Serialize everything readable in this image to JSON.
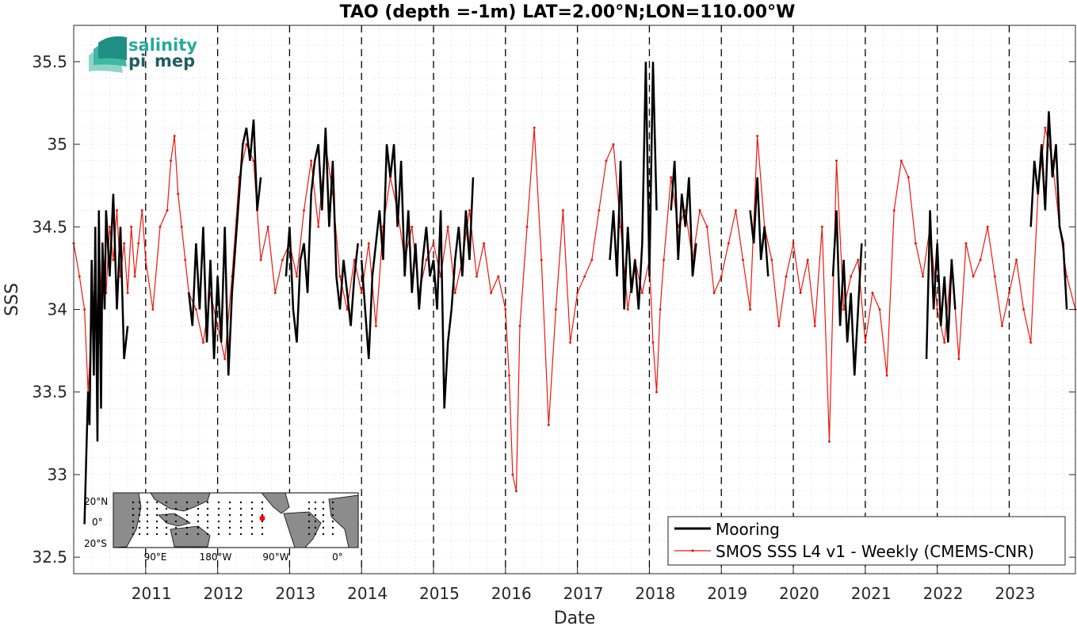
{
  "chart_data": {
    "type": "line",
    "title": "TAO (depth =-1m) LAT=2.00°N;LON=110.00°W",
    "xlabel": "Date",
    "ylabel": "SSS",
    "xlim": [
      2010.0,
      2023.92
    ],
    "ylim": [
      32.4,
      35.72
    ],
    "x_ticks": [
      "2011",
      "2012",
      "2013",
      "2014",
      "2015",
      "2016",
      "2017",
      "2018",
      "2019",
      "2020",
      "2021",
      "2022",
      "2023"
    ],
    "y_ticks": [
      "32.5",
      "33",
      "33.5",
      "34",
      "34.5",
      "35",
      "35.5"
    ],
    "y_tick_values": [
      32.5,
      33,
      33.5,
      34,
      34.5,
      35,
      35.5
    ],
    "year_lines": [
      2011,
      2012,
      2013,
      2014,
      2015,
      2016,
      2017,
      2018,
      2019,
      2020,
      2021,
      2022,
      2023
    ],
    "grid": "minor-dotted",
    "legend": "bottom-right",
    "series": [
      {
        "name": "Mooring",
        "color": "#000000",
        "segments": [
          {
            "x": [
              2010.15,
              2010.18,
              2010.2,
              2010.22,
              2010.25,
              2010.28,
              2010.3,
              2010.33,
              2010.35,
              2010.38,
              2010.4,
              2010.43,
              2010.45,
              2010.5,
              2010.55,
              2010.6,
              2010.65,
              2010.7,
              2010.75
            ],
            "y": [
              32.7,
              33.2,
              33.5,
              33.3,
              34.3,
              33.6,
              34.5,
              33.2,
              34.6,
              33.4,
              34.4,
              34.0,
              34.6,
              34.2,
              34.7,
              34.0,
              34.5,
              33.7,
              33.9
            ]
          },
          {
            "x": [
              2011.6,
              2011.65,
              2011.7,
              2011.75,
              2011.8,
              2011.85,
              2011.9,
              2011.95,
              2012.0,
              2012.05,
              2012.1,
              2012.15,
              2012.2,
              2012.3,
              2012.35,
              2012.4,
              2012.45,
              2012.5,
              2012.55,
              2012.6
            ],
            "y": [
              34.1,
              33.9,
              34.4,
              34.0,
              34.5,
              33.8,
              34.3,
              33.7,
              34.2,
              33.8,
              34.5,
              33.6,
              34.1,
              34.7,
              35.0,
              35.1,
              34.9,
              35.15,
              34.6,
              34.8
            ]
          },
          {
            "x": [
              2012.95,
              2013.0,
              2013.05,
              2013.1,
              2013.15,
              2013.2,
              2013.25,
              2013.3,
              2013.35,
              2013.4,
              2013.45,
              2013.5,
              2013.55,
              2013.6,
              2013.65,
              2013.7,
              2013.75,
              2013.8,
              2013.85,
              2013.9,
              2013.95
            ],
            "y": [
              34.2,
              34.5,
              34.0,
              33.8,
              34.3,
              34.4,
              34.1,
              34.7,
              34.9,
              35.0,
              34.6,
              35.1,
              34.5,
              34.9,
              34.2,
              34.0,
              34.3,
              34.1,
              33.9,
              34.2,
              34.4
            ]
          },
          {
            "x": [
              2014.0,
              2014.05,
              2014.1,
              2014.15,
              2014.2,
              2014.25,
              2014.3,
              2014.35,
              2014.4,
              2014.45,
              2014.5,
              2014.55,
              2014.6,
              2014.65,
              2014.7,
              2014.75,
              2014.8,
              2014.85,
              2014.9,
              2014.95,
              2015.0,
              2015.05,
              2015.1,
              2015.15,
              2015.2,
              2015.25,
              2015.3,
              2015.35,
              2015.4,
              2015.45,
              2015.5,
              2015.55
            ],
            "y": [
              34.3,
              34.0,
              33.7,
              34.2,
              34.4,
              34.6,
              34.3,
              35.0,
              34.8,
              35.0,
              34.5,
              34.9,
              34.2,
              34.6,
              34.1,
              34.4,
              34.0,
              34.3,
              34.5,
              34.2,
              34.3,
              34.0,
              34.6,
              33.4,
              33.8,
              34.0,
              34.3,
              34.5,
              34.2,
              34.6,
              34.3,
              34.8
            ]
          },
          {
            "x": [
              2017.45,
              2017.5,
              2017.55,
              2017.6,
              2017.65,
              2017.7,
              2017.75,
              2017.8,
              2017.85,
              2017.9,
              2017.95,
              2018.0,
              2018.05,
              2018.1
            ],
            "y": [
              34.3,
              34.6,
              34.2,
              34.9,
              34.0,
              34.5,
              34.1,
              34.3,
              34.0,
              34.4,
              35.5,
              34.2,
              35.5,
              34.6
            ]
          },
          {
            "x": [
              2018.3,
              2018.35,
              2018.4,
              2018.45,
              2018.5,
              2018.55,
              2018.6,
              2018.65
            ],
            "y": [
              34.6,
              34.9,
              34.3,
              34.7,
              34.5,
              34.8,
              34.2,
              34.4
            ]
          },
          {
            "x": [
              2019.4,
              2019.45,
              2019.5,
              2019.55,
              2019.6,
              2019.65
            ],
            "y": [
              34.6,
              34.4,
              34.8,
              34.3,
              34.5,
              34.2
            ]
          },
          {
            "x": [
              2020.55,
              2020.6,
              2020.65,
              2020.7,
              2020.75,
              2020.8,
              2020.85,
              2020.9,
              2020.95
            ],
            "y": [
              34.2,
              34.6,
              33.9,
              34.3,
              33.8,
              34.1,
              33.6,
              34.0,
              34.4
            ]
          },
          {
            "x": [
              2021.85,
              2021.9,
              2021.95,
              2022.0,
              2022.05,
              2022.1,
              2022.15,
              2022.2,
              2022.25
            ],
            "y": [
              33.7,
              34.6,
              34.0,
              34.4,
              33.9,
              34.2,
              33.8,
              34.3,
              34.0
            ]
          },
          {
            "x": [
              2023.3,
              2023.35,
              2023.4,
              2023.45,
              2023.5,
              2023.55,
              2023.6,
              2023.65,
              2023.7,
              2023.75,
              2023.8
            ],
            "y": [
              34.5,
              34.9,
              34.7,
              35.0,
              34.6,
              35.2,
              34.8,
              35.0,
              34.5,
              34.4,
              34.0
            ]
          }
        ]
      },
      {
        "name": "SMOS SSS L4 v1 - Weekly (CMEMS-CNR)",
        "color": "#e8190f",
        "x": [
          2010.0,
          2010.08,
          2010.15,
          2010.2,
          2010.25,
          2010.3,
          2010.35,
          2010.4,
          2010.45,
          2010.5,
          2010.55,
          2010.6,
          2010.65,
          2010.7,
          2010.75,
          2010.8,
          2010.85,
          2010.9,
          2010.95,
          2011.0,
          2011.1,
          2011.2,
          2011.3,
          2011.35,
          2011.4,
          2011.45,
          2011.5,
          2011.55,
          2011.6,
          2011.7,
          2011.8,
          2011.9,
          2012.0,
          2012.1,
          2012.2,
          2012.3,
          2012.4,
          2012.5,
          2012.55,
          2012.6,
          2012.7,
          2012.8,
          2012.9,
          2013.0,
          2013.1,
          2013.2,
          2013.3,
          2013.4,
          2013.5,
          2013.6,
          2013.7,
          2013.8,
          2013.9,
          2014.0,
          2014.1,
          2014.2,
          2014.3,
          2014.4,
          2014.5,
          2014.6,
          2014.7,
          2014.8,
          2014.9,
          2015.0,
          2015.1,
          2015.2,
          2015.3,
          2015.4,
          2015.5,
          2015.6,
          2015.7,
          2015.8,
          2015.9,
          2016.0,
          2016.05,
          2016.1,
          2016.15,
          2016.2,
          2016.3,
          2016.4,
          2016.5,
          2016.6,
          2016.7,
          2016.8,
          2016.9,
          2017.0,
          2017.1,
          2017.2,
          2017.3,
          2017.4,
          2017.5,
          2017.6,
          2017.7,
          2017.8,
          2017.9,
          2018.0,
          2018.05,
          2018.1,
          2018.15,
          2018.2,
          2018.3,
          2018.4,
          2018.5,
          2018.6,
          2018.7,
          2018.8,
          2018.9,
          2019.0,
          2019.1,
          2019.2,
          2019.3,
          2019.4,
          2019.5,
          2019.6,
          2019.7,
          2019.8,
          2019.9,
          2020.0,
          2020.1,
          2020.2,
          2020.3,
          2020.4,
          2020.5,
          2020.6,
          2020.7,
          2020.8,
          2020.9,
          2021.0,
          2021.1,
          2021.2,
          2021.3,
          2021.4,
          2021.5,
          2021.6,
          2021.7,
          2021.8,
          2021.9,
          2022.0,
          2022.1,
          2022.2,
          2022.3,
          2022.4,
          2022.5,
          2022.6,
          2022.7,
          2022.8,
          2022.9,
          2023.0,
          2023.1,
          2023.2,
          2023.3,
          2023.4,
          2023.5,
          2023.6,
          2023.7,
          2023.8,
          2023.92
        ],
        "y": [
          34.4,
          34.2,
          34.0,
          33.5,
          33.9,
          34.2,
          33.8,
          34.4,
          34.1,
          34.5,
          34.3,
          34.6,
          34.2,
          34.4,
          34.1,
          34.5,
          34.2,
          34.4,
          34.6,
          34.3,
          34.0,
          34.5,
          34.6,
          34.9,
          35.05,
          34.7,
          34.5,
          34.3,
          34.1,
          34.0,
          33.8,
          34.1,
          33.9,
          33.7,
          34.2,
          34.8,
          35.0,
          34.9,
          34.6,
          34.3,
          34.5,
          34.1,
          34.3,
          34.4,
          34.2,
          34.6,
          34.9,
          34.5,
          35.0,
          34.7,
          34.2,
          34.0,
          34.3,
          34.1,
          34.4,
          33.9,
          34.5,
          34.8,
          34.6,
          34.3,
          34.5,
          34.1,
          34.3,
          34.4,
          34.2,
          34.5,
          34.1,
          34.3,
          34.6,
          34.2,
          34.4,
          34.1,
          34.2,
          34.0,
          33.6,
          33.0,
          32.9,
          33.9,
          34.5,
          35.1,
          34.3,
          33.3,
          34.0,
          34.6,
          33.8,
          34.1,
          34.2,
          34.3,
          34.6,
          34.9,
          35.0,
          34.5,
          34.0,
          34.3,
          34.1,
          34.3,
          33.8,
          33.5,
          34.0,
          34.3,
          34.8,
          34.5,
          34.6,
          34.3,
          34.6,
          34.5,
          34.1,
          34.2,
          34.4,
          34.6,
          34.3,
          34.0,
          35.05,
          34.5,
          34.3,
          33.9,
          34.2,
          34.4,
          34.1,
          34.3,
          33.9,
          34.5,
          33.2,
          34.9,
          34.0,
          34.2,
          34.3,
          33.8,
          34.1,
          34.0,
          33.6,
          34.6,
          34.9,
          34.8,
          34.4,
          34.2,
          34.5,
          34.0,
          33.8,
          34.3,
          33.7,
          34.4,
          34.2,
          34.3,
          34.5,
          34.2,
          33.9,
          34.1,
          34.3,
          34.0,
          33.8,
          34.7,
          35.1,
          34.9,
          34.5,
          34.2,
          34.0
        ]
      }
    ]
  },
  "logo": {
    "line1": "salinity",
    "line2": "pi",
    "line3": "mep"
  },
  "inset_map": {
    "lat_labels": [
      "20°N",
      "0°",
      "20°S"
    ],
    "lon_labels": [
      "90°E",
      "180°W",
      "90°W",
      "0°"
    ]
  }
}
